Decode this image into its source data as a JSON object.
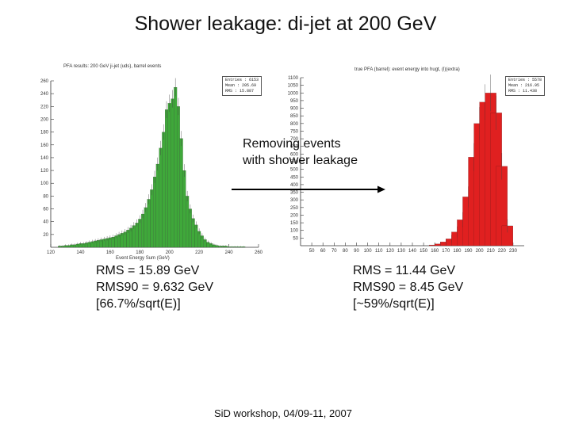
{
  "slide": {
    "title": "Shower leakage: di-jet at 200 GeV",
    "footer": "SiD workshop, 04/09-11, 2007"
  },
  "left_plot": {
    "title": "PFA results: 200 GeV ji-jet (uds), barrel events",
    "stats": [
      "Entries : 6153",
      "Mean : 205.69",
      "RMS : 15.887"
    ],
    "xlabel": "Event Energy Sum (GeV)",
    "color": "#3fa83a",
    "results": [
      "RMS = 15.89 GeV",
      "RMS90 = 9.632 GeV",
      "[66.7%/sqrt(E)]"
    ]
  },
  "right_plot": {
    "title": "true PFA (barrel): event energy into hugt, (l)(extra)",
    "stats": [
      "Entries : 5578",
      "Mean : 216.95",
      "RMS : 11.438"
    ],
    "color": "#e02020",
    "results": [
      "RMS = 11.44 GeV",
      "RMS90 = 8.45 GeV",
      "[~59%/sqrt(E)]"
    ]
  },
  "annotation": {
    "line1": "Removing events",
    "line2": "with shower leakage"
  },
  "chart_data": [
    {
      "type": "bar",
      "title": "PFA results: 200 GeV ji-jet (uds), barrel events",
      "xlabel": "Event Energy Sum (GeV)",
      "ylabel": "",
      "xlim": [
        120,
        260
      ],
      "ylim": [
        0,
        260
      ],
      "x_ticks": [
        120,
        140,
        160,
        180,
        200,
        220,
        240,
        260
      ],
      "y_ticks": [
        20,
        40,
        60,
        80,
        100,
        120,
        140,
        160,
        180,
        200,
        220,
        240,
        260
      ],
      "bin_width": 1,
      "x": [
        126,
        128,
        130,
        132,
        134,
        136,
        138,
        140,
        142,
        144,
        146,
        148,
        150,
        152,
        154,
        156,
        158,
        160,
        162,
        164,
        166,
        168,
        170,
        172,
        174,
        176,
        178,
        180,
        182,
        184,
        186,
        188,
        190,
        192,
        194,
        196,
        198,
        200,
        202,
        204,
        206,
        208,
        210,
        212,
        214,
        216,
        218,
        220,
        222,
        224,
        226,
        228,
        230,
        232,
        234,
        236,
        238,
        240,
        242,
        244,
        246,
        248,
        250
      ],
      "values": [
        2,
        2,
        3,
        3,
        4,
        4,
        5,
        6,
        6,
        7,
        8,
        9,
        10,
        11,
        12,
        13,
        14,
        15,
        16,
        18,
        20,
        22,
        24,
        27,
        30,
        34,
        38,
        44,
        52,
        62,
        75,
        90,
        110,
        130,
        155,
        180,
        215,
        225,
        232,
        250,
        220,
        170,
        120,
        80,
        60,
        45,
        35,
        25,
        18,
        12,
        8,
        6,
        4,
        3,
        2,
        2,
        2,
        1,
        1,
        1,
        1,
        1,
        1
      ],
      "color": "#3fa83a"
    },
    {
      "type": "bar",
      "title": "true PFA (barrel): event energy into hugt, (l)(extra)",
      "xlabel": "",
      "ylabel": "",
      "xlim": [
        40,
        240
      ],
      "ylim": [
        0,
        1100
      ],
      "x_ticks": [
        50,
        60,
        70,
        80,
        90,
        100,
        110,
        120,
        130,
        140,
        150,
        160,
        170,
        180,
        190,
        200,
        210,
        220,
        230
      ],
      "y_ticks": [
        50,
        100,
        150,
        200,
        250,
        300,
        350,
        400,
        450,
        500,
        550,
        600,
        650,
        700,
        750,
        800,
        850,
        900,
        950,
        1000,
        1050,
        1100
      ],
      "bin_width": 5,
      "x": [
        160,
        165,
        170,
        175,
        180,
        185,
        190,
        195,
        200,
        205,
        210,
        215,
        220,
        225
      ],
      "values": [
        5,
        12,
        25,
        45,
        90,
        170,
        320,
        580,
        800,
        940,
        1000,
        870,
        520,
        130
      ],
      "color": "#e02020"
    }
  ]
}
